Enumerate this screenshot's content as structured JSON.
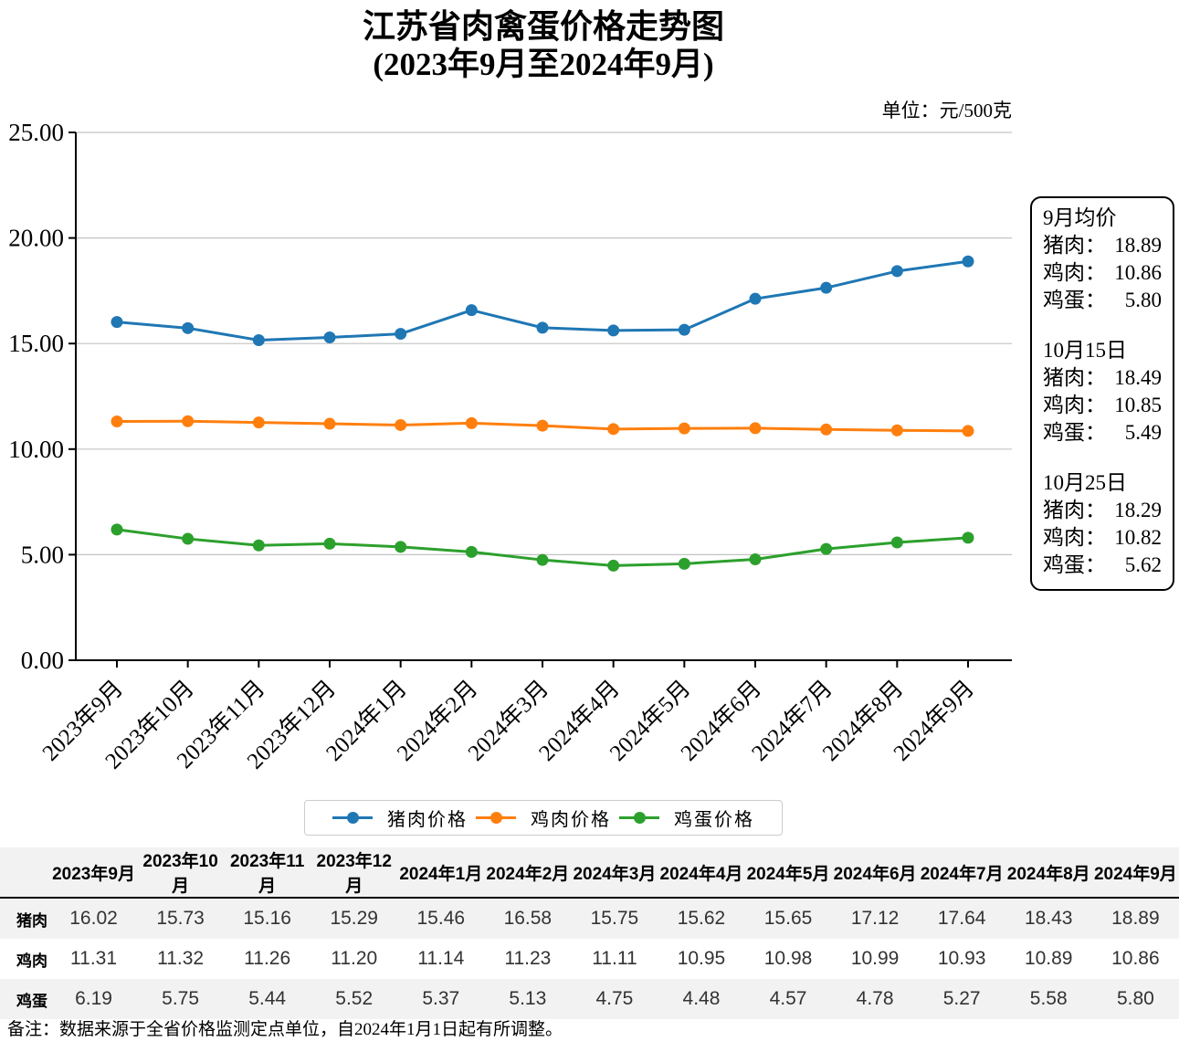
{
  "page": {
    "title": "江苏省肉禽蛋价格走势图",
    "subtitle": "(2023年9月至2024年9月)",
    "unit_label": "单位：元/500克",
    "note": "备注：数据来源于全省价格监测定点单位，自2024年1月1日起有所调整。"
  },
  "colors": {
    "pork": "#1f77b4",
    "chicken": "#ff7f0e",
    "egg": "#2ca02c",
    "gridline": "#c3c3c3",
    "axis": "#000000",
    "table_stripe": "#f2f2f2"
  },
  "chart_data": {
    "type": "line",
    "title": "江苏省肉禽蛋价格走势图(2023年9月至2024年9月)",
    "unit": "元/500克",
    "categories": [
      "2023年9月",
      "2023年10月",
      "2023年11月",
      "2023年12月",
      "2024年1月",
      "2024年2月",
      "2024年3月",
      "2024年4月",
      "2024年5月",
      "2024年6月",
      "2024年7月",
      "2024年8月",
      "2024年9月"
    ],
    "series": [
      {
        "key": "pork",
        "name": "猪肉价格",
        "color": "#1f77b4",
        "values": [
          16.02,
          15.73,
          15.16,
          15.29,
          15.46,
          16.58,
          15.75,
          15.62,
          15.65,
          17.12,
          17.64,
          18.43,
          18.89
        ]
      },
      {
        "key": "chicken",
        "name": "鸡肉价格",
        "color": "#ff7f0e",
        "values": [
          11.31,
          11.32,
          11.26,
          11.2,
          11.14,
          11.23,
          11.11,
          10.95,
          10.98,
          10.99,
          10.93,
          10.89,
          10.86
        ]
      },
      {
        "key": "egg",
        "name": "鸡蛋价格",
        "color": "#2ca02c",
        "values": [
          6.19,
          5.75,
          5.44,
          5.52,
          5.37,
          5.13,
          4.75,
          4.48,
          4.57,
          4.78,
          5.27,
          5.58,
          5.8
        ]
      }
    ],
    "xlabel": "",
    "ylabel": "",
    "ylim": [
      0,
      25
    ],
    "ytick_step": 5,
    "ytick_labels": [
      "0.00",
      "5.00",
      "10.00",
      "15.00",
      "20.00",
      "25.00"
    ],
    "grid": true,
    "legend_position": "bottom"
  },
  "panel": {
    "groups": [
      {
        "title": "9月均价",
        "rows": [
          {
            "label": "猪肉：",
            "value": "18.89"
          },
          {
            "label": "鸡肉：",
            "value": "10.86"
          },
          {
            "label": "鸡蛋：",
            "value": "5.80"
          }
        ]
      },
      {
        "title": "10月15日",
        "rows": [
          {
            "label": "猪肉：",
            "value": "18.49"
          },
          {
            "label": "鸡肉：",
            "value": "10.85"
          },
          {
            "label": "鸡蛋：",
            "value": "5.49"
          }
        ]
      },
      {
        "title": "10月25日",
        "rows": [
          {
            "label": "猪肉：",
            "value": "18.29"
          },
          {
            "label": "鸡肉：",
            "value": "10.82"
          },
          {
            "label": "鸡蛋：",
            "value": "5.62"
          }
        ]
      }
    ]
  },
  "table": {
    "corner": "",
    "headers": [
      "2023年9月",
      "2023年10月",
      "2023年11月",
      "2023年12月",
      "2024年1月",
      "2024年2月",
      "2024年3月",
      "2024年4月",
      "2024年5月",
      "2024年6月",
      "2024年7月",
      "2024年8月",
      "2024年9月"
    ],
    "rows": [
      {
        "label": "猪肉",
        "values": [
          "16.02",
          "15.73",
          "15.16",
          "15.29",
          "15.46",
          "16.58",
          "15.75",
          "15.62",
          "15.65",
          "17.12",
          "17.64",
          "18.43",
          "18.89"
        ]
      },
      {
        "label": "鸡肉",
        "values": [
          "11.31",
          "11.32",
          "11.26",
          "11.20",
          "11.14",
          "11.23",
          "11.11",
          "10.95",
          "10.98",
          "10.99",
          "10.93",
          "10.89",
          "10.86"
        ]
      },
      {
        "label": "鸡蛋",
        "values": [
          "6.19",
          "5.75",
          "5.44",
          "5.52",
          "5.37",
          "5.13",
          "4.75",
          "4.48",
          "4.57",
          "4.78",
          "5.27",
          "5.58",
          "5.80"
        ]
      }
    ]
  }
}
